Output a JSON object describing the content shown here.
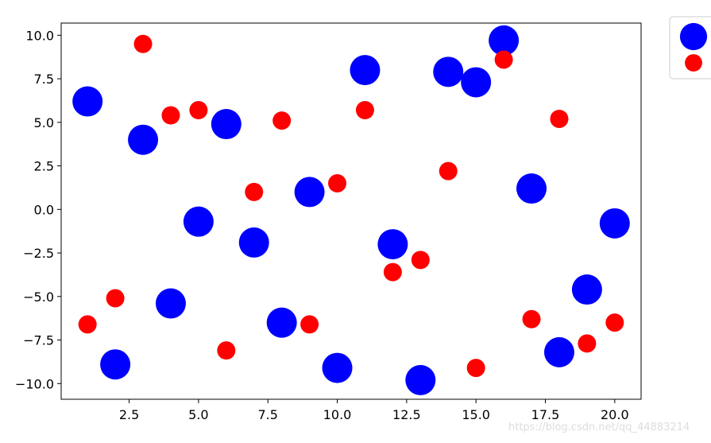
{
  "chart_data": {
    "type": "scatter",
    "xlim": [
      0.05,
      20.95
    ],
    "ylim": [
      -10.9,
      10.7
    ],
    "xticks": [
      2.5,
      5.0,
      7.5,
      10.0,
      12.5,
      15.0,
      17.5,
      20.0
    ],
    "xtick_labels": [
      "2.5",
      "5.0",
      "7.5",
      "10.0",
      "12.5",
      "15.0",
      "17.5",
      "20.0"
    ],
    "yticks": [
      10.0,
      7.5,
      5.0,
      2.5,
      0.0,
      -2.5,
      -5.0,
      -7.5,
      -10.0
    ],
    "ytick_labels": [
      "10.0",
      "7.5",
      "5.0",
      "2.5",
      "0.0",
      "−2.5",
      "−5.0",
      "−7.5",
      "−10.0"
    ],
    "grid": false,
    "legend_placement": "outside-top-right",
    "series": [
      {
        "color": "#0000ff",
        "marker_size": "large",
        "x": [
          1,
          2,
          3,
          4,
          5,
          6,
          7,
          8,
          9,
          10,
          11,
          12,
          13,
          14,
          15,
          16,
          17,
          18,
          19,
          20
        ],
        "y": [
          6.2,
          -8.9,
          4.0,
          -5.4,
          -0.7,
          4.9,
          -1.9,
          -6.5,
          1.0,
          -9.1,
          8.0,
          -2.0,
          -9.8,
          7.9,
          7.3,
          9.7,
          1.2,
          -8.2,
          -4.6,
          -0.8
        ]
      },
      {
        "color": "#ff0000",
        "marker_size": "small",
        "x": [
          1,
          2,
          3,
          4,
          5,
          6,
          7,
          8,
          9,
          10,
          11,
          12,
          13,
          14,
          15,
          16,
          17,
          18,
          19,
          20
        ],
        "y": [
          -6.6,
          -5.1,
          9.5,
          5.4,
          5.7,
          -8.1,
          1.0,
          5.1,
          -6.6,
          1.5,
          5.7,
          -3.6,
          -2.9,
          2.2,
          -9.1,
          8.6,
          -6.3,
          5.2,
          -7.7,
          -6.5
        ]
      }
    ]
  },
  "watermark": "https://blog.csdn.net/qq_44883214"
}
